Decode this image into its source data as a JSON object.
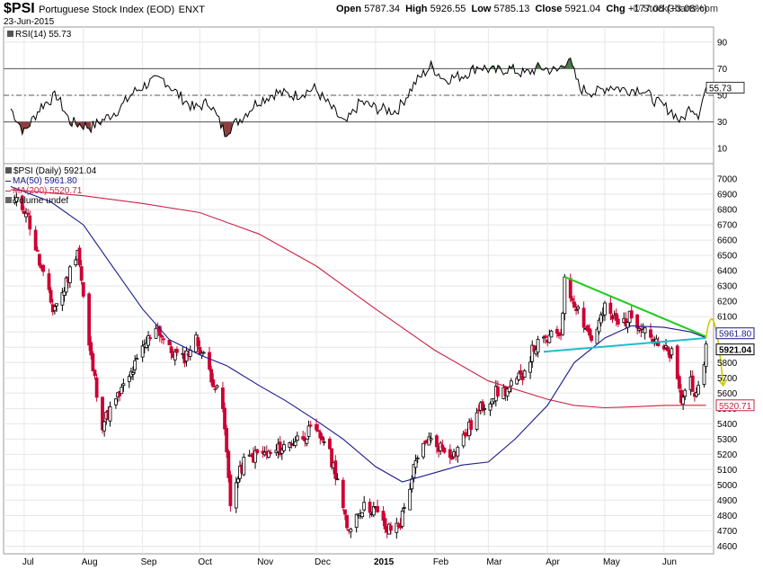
{
  "header": {
    "symbol": "$PSI",
    "name": "Portuguese Stock Index (EOD)",
    "exchange": "ENXT",
    "date": "23-Jun-2015",
    "open_label": "Open",
    "open": "5787.34",
    "high_label": "High",
    "high": "5926.55",
    "low_label": "Low",
    "low": "5785.13",
    "close_label": "Close",
    "close": "5921.04",
    "chg_label": "Chg",
    "chg": "+177.08 (+3.08%)",
    "brand": "© StockCharts.com"
  },
  "rsi_panel": {
    "label": "RSI(14) 55.73",
    "value_tag": "55.73"
  },
  "legend": {
    "price": "$PSI (Daily) 5921.04",
    "ma50": "MA(50) 5961.80",
    "ma200": "MA(200) 5520.71",
    "volume": "Volume undef"
  },
  "tags": {
    "ma50": "5961.80",
    "close": "5921.04",
    "ma200": "5520.71"
  },
  "colors": {
    "up": "#000000",
    "down": "#cc0033",
    "ma50": "#1a1a8c",
    "ma200": "#cc2244",
    "rsi": "#000000",
    "rsi_overbought_fill": "#4d7a4d",
    "rsi_oversold_fill": "#8c3f3f",
    "resistance": "#22cc22",
    "support": "#22bbcc",
    "projection": "#cccc00"
  },
  "chart_data": {
    "type": "line",
    "price_axis": {
      "ylim": [
        4550,
        7100
      ],
      "ticks": [
        4600,
        4700,
        4800,
        4900,
        5000,
        5100,
        5200,
        5300,
        5400,
        5500,
        5600,
        5700,
        5800,
        5900,
        6000,
        6100,
        6200,
        6300,
        6400,
        6500,
        6600,
        6700,
        6800,
        6900,
        7000
      ]
    },
    "rsi_axis": {
      "ylim": [
        0,
        100
      ],
      "ticks": [
        10,
        30,
        50,
        70,
        90
      ],
      "bands": [
        30,
        50,
        70
      ]
    },
    "x_ticks": [
      "Jul",
      "Aug",
      "Sep",
      "Oct",
      "Nov",
      "Dec",
      "2015",
      "Feb",
      "Mar",
      "Apr",
      "May",
      "Jun"
    ],
    "x_tick_dates": [
      "2014-07-01",
      "2014-08-01",
      "2014-09-01",
      "2014-10-01",
      "2014-11-01",
      "2014-12-01",
      "2015-01-01",
      "2015-02-01",
      "2015-03-01",
      "2015-04-01",
      "2015-05-01",
      "2015-06-01"
    ],
    "x_range": [
      "2014-06-24",
      "2015-06-26"
    ],
    "close_series": [
      [
        "2014-06-26",
        6850
      ],
      [
        "2014-07-02",
        6800
      ],
      [
        "2014-07-09",
        6450
      ],
      [
        "2014-07-16",
        6150
      ],
      [
        "2014-07-21",
        6250
      ],
      [
        "2014-07-29",
        6550
      ],
      [
        "2014-08-04",
        5900
      ],
      [
        "2014-08-11",
        5400
      ],
      [
        "2014-08-18",
        5550
      ],
      [
        "2014-08-25",
        5700
      ],
      [
        "2014-09-01",
        5880
      ],
      [
        "2014-09-08",
        6050
      ],
      [
        "2014-09-15",
        5880
      ],
      [
        "2014-09-22",
        5820
      ],
      [
        "2014-09-29",
        5950
      ],
      [
        "2014-10-06",
        5750
      ],
      [
        "2014-10-13",
        5500
      ],
      [
        "2014-10-17",
        4900
      ],
      [
        "2014-10-24",
        5150
      ],
      [
        "2014-10-31",
        5200
      ],
      [
        "2014-11-07",
        5200
      ],
      [
        "2014-11-14",
        5250
      ],
      [
        "2014-11-21",
        5300
      ],
      [
        "2014-11-28",
        5350
      ],
      [
        "2014-12-05",
        5300
      ],
      [
        "2014-12-12",
        5050
      ],
      [
        "2014-12-17",
        4700
      ],
      [
        "2014-12-24",
        4850
      ],
      [
        "2014-12-31",
        4850
      ],
      [
        "2015-01-07",
        4700
      ],
      [
        "2015-01-14",
        4750
      ],
      [
        "2015-01-21",
        5100
      ],
      [
        "2015-01-28",
        5300
      ],
      [
        "2015-02-04",
        5250
      ],
      [
        "2015-02-11",
        5200
      ],
      [
        "2015-02-18",
        5350
      ],
      [
        "2015-02-25",
        5500
      ],
      [
        "2015-03-04",
        5600
      ],
      [
        "2015-03-11",
        5620
      ],
      [
        "2015-03-18",
        5700
      ],
      [
        "2015-03-25",
        5900
      ],
      [
        "2015-04-01",
        5950
      ],
      [
        "2015-04-08",
        6000
      ],
      [
        "2015-04-10",
        6320
      ],
      [
        "2015-04-17",
        6150
      ],
      [
        "2015-04-24",
        5950
      ],
      [
        "2015-05-01",
        6150
      ],
      [
        "2015-05-08",
        6050
      ],
      [
        "2015-05-15",
        6100
      ],
      [
        "2015-05-22",
        6030
      ],
      [
        "2015-05-29",
        5900
      ],
      [
        "2015-06-05",
        5850
      ],
      [
        "2015-06-10",
        5550
      ],
      [
        "2015-06-15",
        5700
      ],
      [
        "2015-06-18",
        5560
      ],
      [
        "2015-06-22",
        5744
      ],
      [
        "2015-06-23",
        5921
      ]
    ],
    "ma50_series": [
      [
        "2014-06-24",
        6950
      ],
      [
        "2014-07-15",
        6850
      ],
      [
        "2014-08-01",
        6700
      ],
      [
        "2014-08-15",
        6450
      ],
      [
        "2014-09-01",
        6150
      ],
      [
        "2014-09-15",
        5950
      ],
      [
        "2014-10-01",
        5850
      ],
      [
        "2014-10-15",
        5780
      ],
      [
        "2014-11-01",
        5650
      ],
      [
        "2014-11-15",
        5550
      ],
      [
        "2014-12-01",
        5420
      ],
      [
        "2014-12-15",
        5300
      ],
      [
        "2015-01-01",
        5120
      ],
      [
        "2015-01-15",
        5020
      ],
      [
        "2015-02-01",
        5080
      ],
      [
        "2015-02-15",
        5130
      ],
      [
        "2015-03-01",
        5150
      ],
      [
        "2015-03-15",
        5300
      ],
      [
        "2015-04-01",
        5520
      ],
      [
        "2015-04-15",
        5800
      ],
      [
        "2015-05-01",
        5960
      ],
      [
        "2015-05-15",
        6040
      ],
      [
        "2015-06-01",
        6030
      ],
      [
        "2015-06-15",
        6000
      ],
      [
        "2015-06-23",
        5961.8
      ]
    ],
    "ma200_series": [
      [
        "2014-06-24",
        6930
      ],
      [
        "2014-08-01",
        6890
      ],
      [
        "2014-09-01",
        6840
      ],
      [
        "2014-10-01",
        6780
      ],
      [
        "2014-11-01",
        6640
      ],
      [
        "2014-12-01",
        6430
      ],
      [
        "2015-01-01",
        6150
      ],
      [
        "2015-02-01",
        5880
      ],
      [
        "2015-03-01",
        5680
      ],
      [
        "2015-04-01",
        5560
      ],
      [
        "2015-04-15",
        5520
      ],
      [
        "2015-05-01",
        5505
      ],
      [
        "2015-05-15",
        5510
      ],
      [
        "2015-06-01",
        5520
      ],
      [
        "2015-06-23",
        5520.71
      ]
    ],
    "rsi_series": [
      [
        "2014-06-24",
        40
      ],
      [
        "2014-07-01",
        22
      ],
      [
        "2014-07-10",
        42
      ],
      [
        "2014-07-18",
        50
      ],
      [
        "2014-07-25",
        30
      ],
      [
        "2014-08-05",
        26
      ],
      [
        "2014-08-12",
        32
      ],
      [
        "2014-08-20",
        40
      ],
      [
        "2014-08-27",
        52
      ],
      [
        "2014-09-05",
        60
      ],
      [
        "2014-09-12",
        62
      ],
      [
        "2014-09-20",
        50
      ],
      [
        "2014-09-28",
        40
      ],
      [
        "2014-10-06",
        45
      ],
      [
        "2014-10-14",
        22
      ],
      [
        "2014-10-22",
        32
      ],
      [
        "2014-10-31",
        45
      ],
      [
        "2014-11-10",
        52
      ],
      [
        "2014-11-20",
        50
      ],
      [
        "2014-11-30",
        55
      ],
      [
        "2014-12-08",
        42
      ],
      [
        "2014-12-16",
        28
      ],
      [
        "2014-12-24",
        45
      ],
      [
        "2015-01-02",
        40
      ],
      [
        "2015-01-12",
        38
      ],
      [
        "2015-01-22",
        60
      ],
      [
        "2015-01-30",
        72
      ],
      [
        "2015-02-06",
        62
      ],
      [
        "2015-02-16",
        65
      ],
      [
        "2015-02-24",
        72
      ],
      [
        "2015-03-04",
        68
      ],
      [
        "2015-03-12",
        70
      ],
      [
        "2015-03-20",
        66
      ],
      [
        "2015-03-28",
        71
      ],
      [
        "2015-04-06",
        68
      ],
      [
        "2015-04-12",
        78
      ],
      [
        "2015-04-18",
        55
      ],
      [
        "2015-04-26",
        52
      ],
      [
        "2015-05-04",
        57
      ],
      [
        "2015-05-12",
        54
      ],
      [
        "2015-05-20",
        55
      ],
      [
        "2015-05-28",
        45
      ],
      [
        "2015-06-05",
        38
      ],
      [
        "2015-06-10",
        30
      ],
      [
        "2015-06-15",
        42
      ],
      [
        "2015-06-19",
        36
      ],
      [
        "2015-06-23",
        55.73
      ]
    ],
    "annotations": {
      "resistance_line": [
        [
          "2015-04-10",
          6360
        ],
        [
          "2015-06-23",
          5970
        ]
      ],
      "support_line": [
        [
          "2015-03-30",
          5870
        ],
        [
          "2015-06-23",
          5960
        ]
      ],
      "projection": [
        [
          "2015-06-23",
          5960
        ],
        [
          "2015-06-26",
          6200
        ],
        [
          "2015-07-02",
          5650
        ]
      ]
    }
  }
}
